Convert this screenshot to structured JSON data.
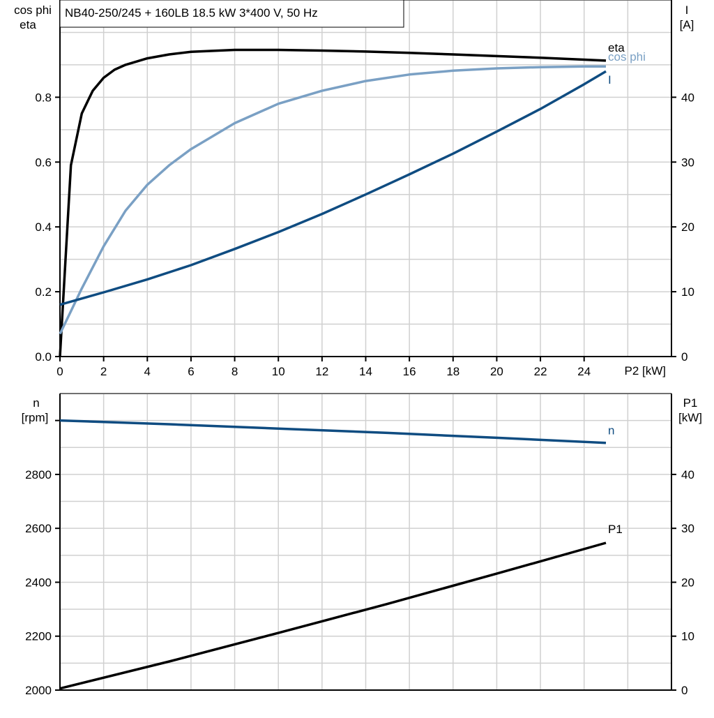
{
  "title": "NB40-250/245 + 160LB   18.5 kW   3*400 V, 50 Hz",
  "chart_data": [
    {
      "type": "line",
      "xlabel": "P2 [kW]",
      "xlim": [
        0,
        28
      ],
      "x_ticks": [
        0,
        2,
        4,
        6,
        8,
        10,
        12,
        14,
        16,
        18,
        20,
        22,
        24
      ],
      "ylabel_left": [
        "cos phi",
        "eta"
      ],
      "ylim_left": [
        0,
        1.1
      ],
      "y_ticks_left": [
        "0.0",
        "0.2",
        "0.4",
        "0.6",
        "0.8"
      ],
      "ylabel_right": [
        "I",
        "[A]"
      ],
      "ylim_right": [
        0,
        55
      ],
      "y_ticks_right": [
        "0",
        "10",
        "20",
        "30",
        "40"
      ],
      "grid": true,
      "series": [
        {
          "name": "eta",
          "axis": "left",
          "color": "#000000",
          "x": [
            0,
            0.5,
            1,
            1.5,
            2,
            2.5,
            3,
            4,
            5,
            6,
            8,
            10,
            12,
            14,
            16,
            18,
            20,
            22,
            24,
            25
          ],
          "y": [
            0.0,
            0.59,
            0.75,
            0.82,
            0.86,
            0.885,
            0.9,
            0.92,
            0.932,
            0.94,
            0.946,
            0.946,
            0.944,
            0.941,
            0.937,
            0.932,
            0.927,
            0.922,
            0.916,
            0.913
          ]
        },
        {
          "name": "cos phi",
          "axis": "left",
          "color": "#7aa0c4",
          "x": [
            0,
            0.5,
            1,
            2,
            3,
            4,
            5,
            6,
            8,
            10,
            12,
            14,
            16,
            18,
            20,
            22,
            24,
            25
          ],
          "y": [
            0.07,
            0.14,
            0.21,
            0.34,
            0.45,
            0.53,
            0.59,
            0.64,
            0.72,
            0.78,
            0.82,
            0.85,
            0.87,
            0.882,
            0.889,
            0.893,
            0.895,
            0.895
          ]
        },
        {
          "name": "I",
          "axis": "right",
          "color": "#0f4c81",
          "x": [
            0,
            2,
            4,
            6,
            8,
            10,
            12,
            14,
            16,
            18,
            20,
            22,
            24,
            25
          ],
          "y": [
            8.0,
            9.9,
            11.9,
            14.1,
            16.6,
            19.2,
            22.0,
            25.0,
            28.1,
            31.3,
            34.7,
            38.2,
            42.0,
            44.0
          ]
        }
      ]
    },
    {
      "type": "line",
      "xlim": [
        0,
        28
      ],
      "ylabel_left": [
        "n",
        "[rpm]"
      ],
      "ylim_left": [
        2000,
        3100
      ],
      "y_ticks_left": [
        "2000",
        "2200",
        "2400",
        "2600",
        "2800"
      ],
      "ylabel_right": [
        "P1",
        "[kW]"
      ],
      "ylim_right": [
        0,
        55
      ],
      "y_ticks_right": [
        "0",
        "10",
        "20",
        "30",
        "40"
      ],
      "grid": true,
      "series": [
        {
          "name": "n",
          "axis": "left",
          "color": "#0f4c81",
          "x": [
            0,
            5,
            10,
            15,
            20,
            25
          ],
          "y": [
            3000,
            2986,
            2970,
            2954,
            2936,
            2917
          ]
        },
        {
          "name": "P1",
          "axis": "right",
          "color": "#000000",
          "x": [
            0,
            5,
            10,
            15,
            20,
            25
          ],
          "y": [
            0.3,
            5.3,
            10.6,
            16.0,
            21.6,
            27.3
          ]
        }
      ]
    }
  ]
}
